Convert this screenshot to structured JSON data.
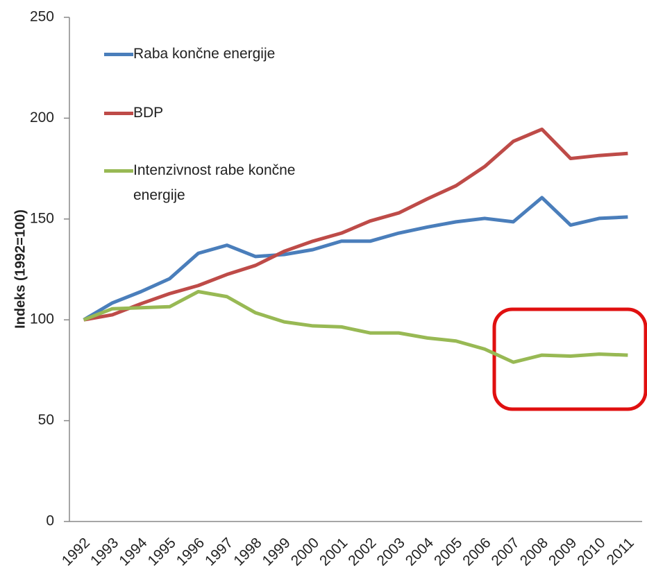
{
  "chart_data": {
    "type": "line",
    "y_label": "Indeks (1992=100)",
    "categories": [
      "1992",
      "1993",
      "1994",
      "1995",
      "1996",
      "1997",
      "1998",
      "1999",
      "2000",
      "2001",
      "2002",
      "2003",
      "2004",
      "2005",
      "2006",
      "2007",
      "2008",
      "2009",
      "2010",
      "2011"
    ],
    "series": [
      {
        "name": "Raba končne energije",
        "color": "#4a7ebb",
        "values": [
          100,
          108.4,
          114,
          120.4,
          133,
          137,
          131.4,
          132.4,
          134.8,
          139,
          139,
          143,
          146,
          148.6,
          150.3,
          148.6,
          160.6,
          147,
          150.3,
          151
        ]
      },
      {
        "name": "BDP",
        "color": "#be4b48",
        "values": [
          100,
          102.5,
          108,
          113,
          117,
          122.5,
          127,
          134,
          139,
          143,
          149,
          153,
          160,
          166.5,
          176,
          188.5,
          194.5,
          180,
          181.5,
          182.5
        ]
      },
      {
        "name": "Intenzivnost rabe končne energije",
        "color": "#98b954",
        "values": [
          100,
          105.5,
          106,
          106.5,
          114,
          111.5,
          103.5,
          99,
          97,
          96.5,
          93.5,
          93.5,
          91,
          89.5,
          85.5,
          79,
          82.5,
          82,
          83,
          82.5
        ]
      }
    ],
    "ylim": [
      0,
      250
    ],
    "yticks": [
      0,
      50,
      100,
      150,
      200,
      250
    ],
    "grid": false
  }
}
